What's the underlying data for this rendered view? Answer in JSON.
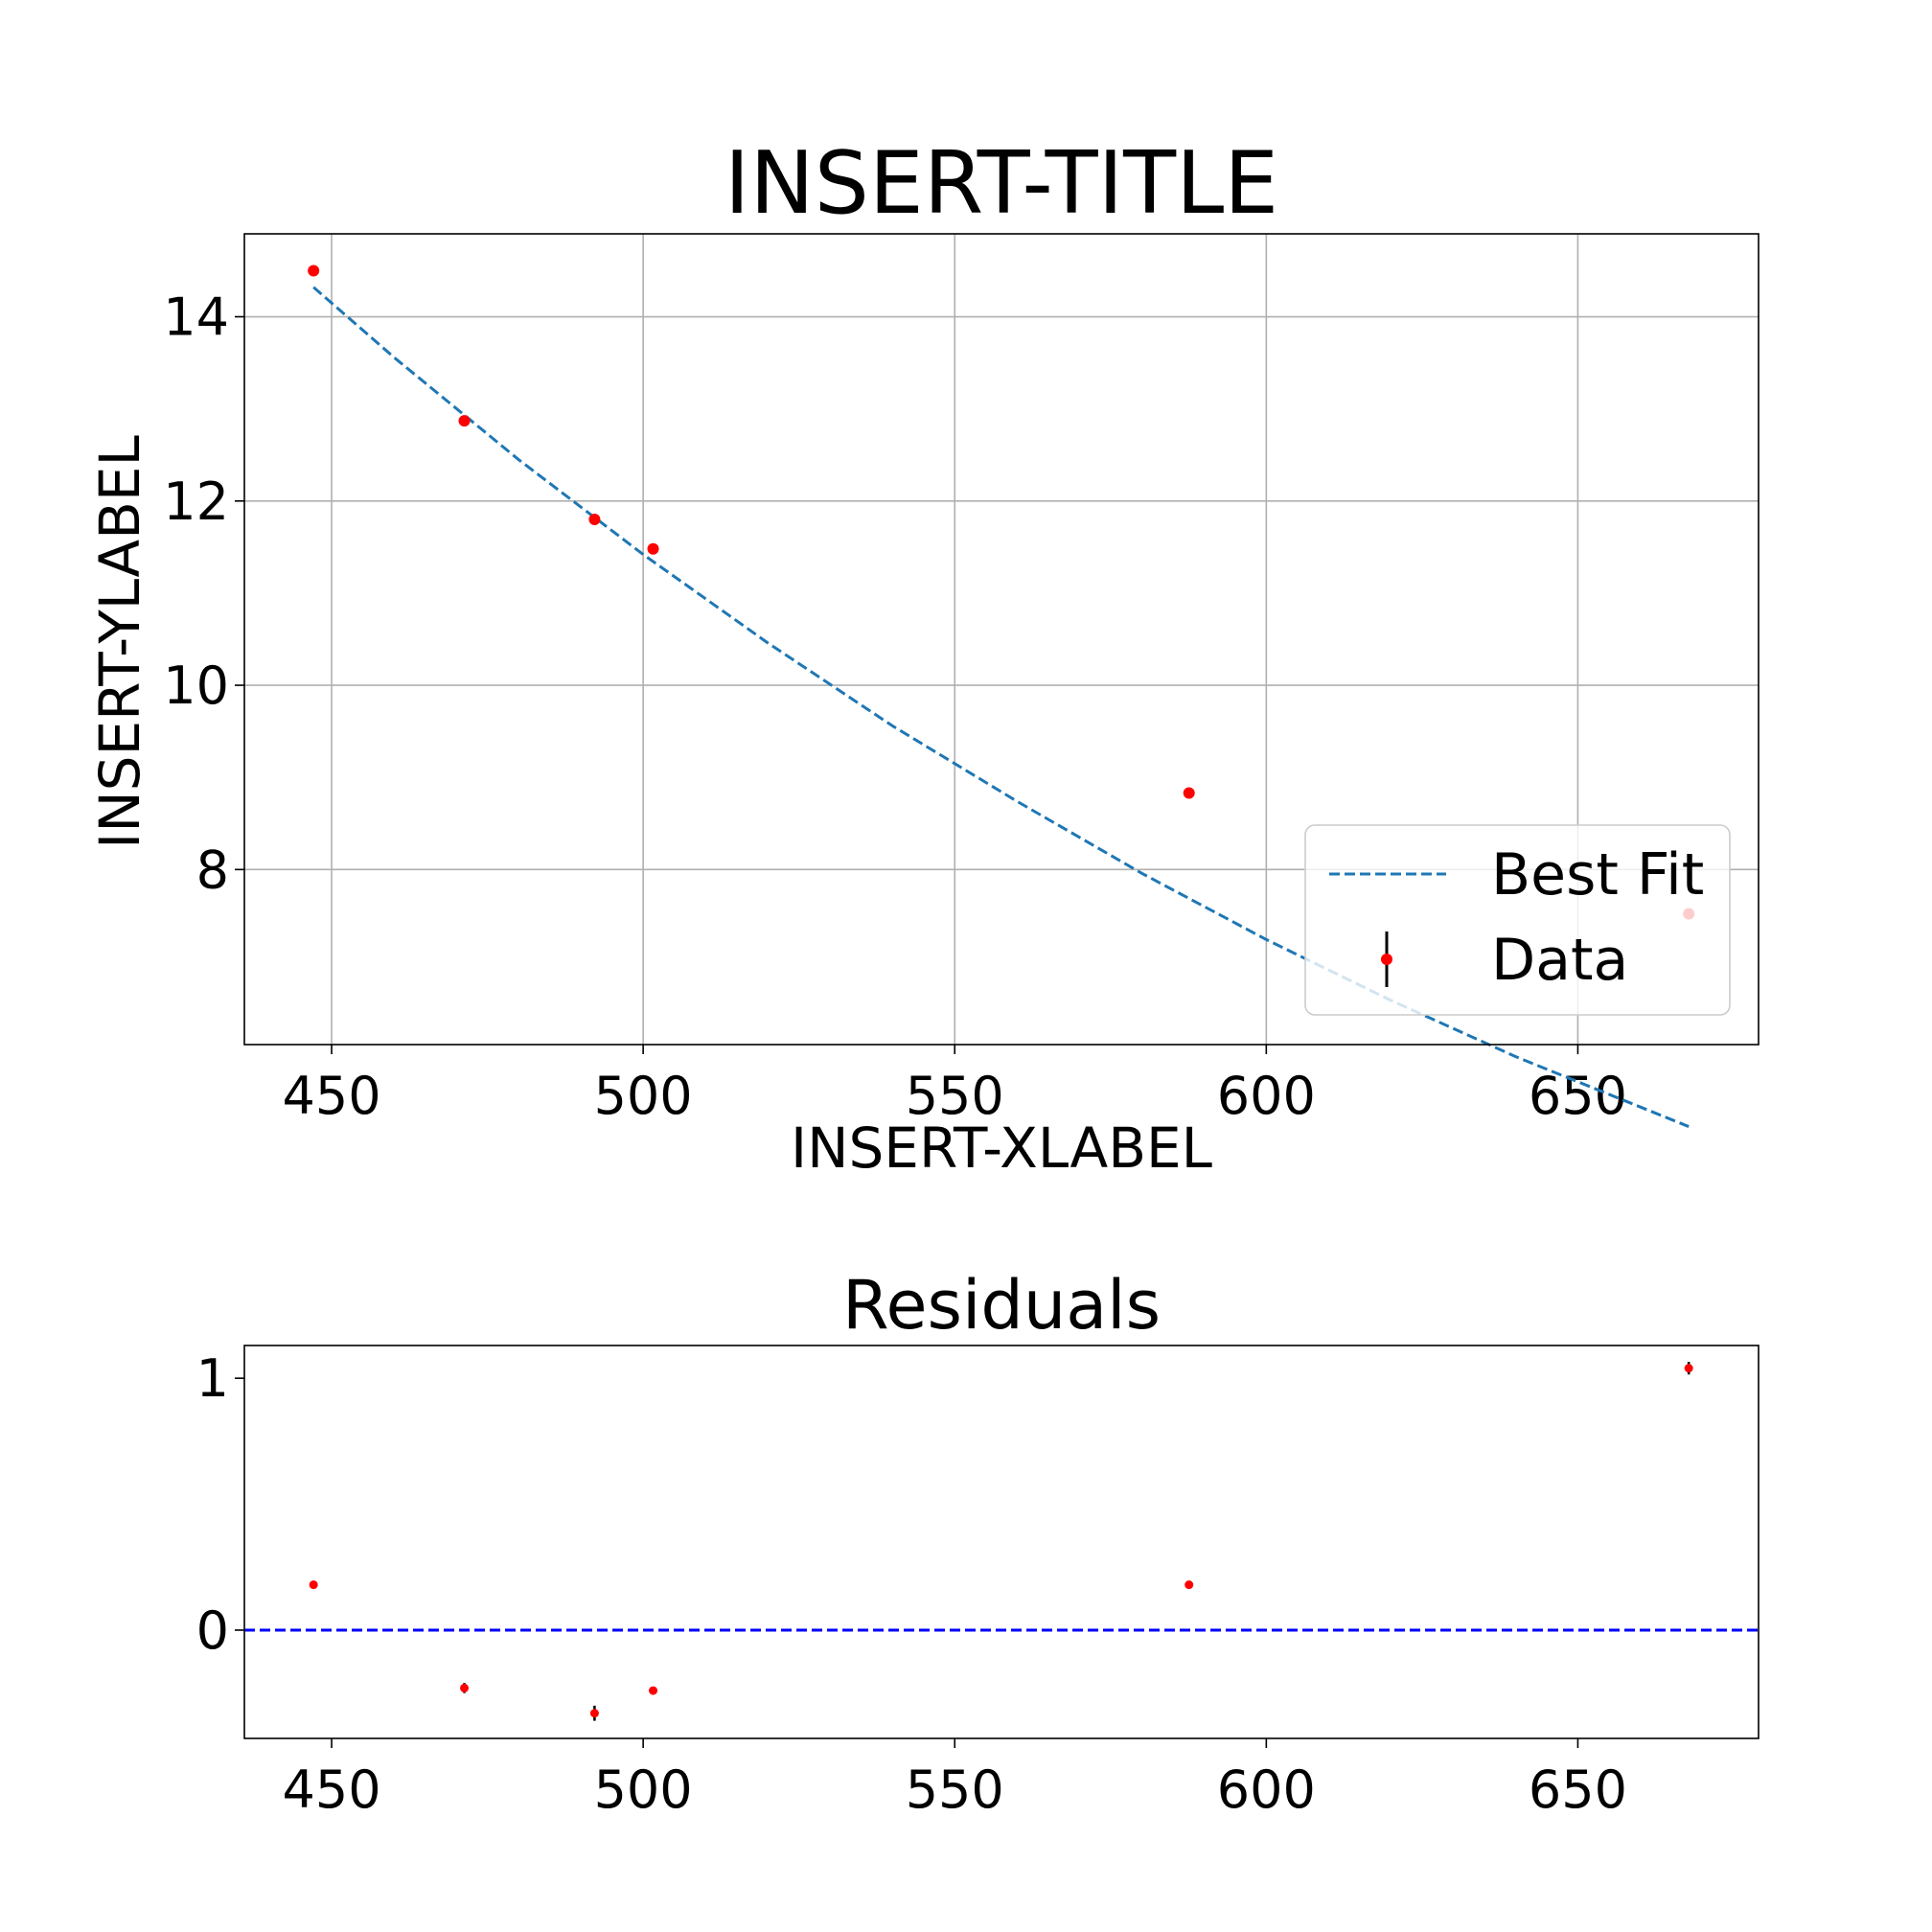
{
  "chart_data": [
    {
      "type": "scatter",
      "title": "INSERT-TITLE",
      "xlabel": "INSERT-XLABEL",
      "ylabel": "INSERT-YLABEL",
      "xlim": [
        436,
        679
      ],
      "ylim": [
        6.1,
        14.9
      ],
      "xticks": [
        450,
        500,
        550,
        600,
        650
      ],
      "yticks": [
        8,
        10,
        12,
        14
      ],
      "grid": true,
      "legend_position": "lower right",
      "series": [
        {
          "name": "Data",
          "kind": "errorbar-points",
          "color": "#ff0000",
          "errorbar_color": "#000000",
          "x": [
            447.1,
            471.3,
            492.2,
            501.6,
            587.6,
            667.8
          ],
          "y": [
            14.5,
            12.87,
            11.8,
            11.48,
            8.83,
            7.52
          ]
        },
        {
          "name": "Best Fit",
          "kind": "line",
          "style": "dashed",
          "color": "#1f77b4",
          "x": [
            447.1,
            460,
            480,
            500,
            520,
            540,
            560,
            580,
            600,
            620,
            640,
            667.8
          ],
          "y": [
            14.32,
            13.56,
            12.45,
            11.42,
            10.46,
            9.56,
            8.74,
            7.96,
            7.24,
            6.58,
            5.97,
            5.21
          ]
        }
      ]
    },
    {
      "type": "scatter",
      "title": "Residuals",
      "xlim": [
        436,
        679
      ],
      "ylim": [
        -0.43,
        1.13
      ],
      "xticks": [
        450,
        500,
        550,
        600,
        650
      ],
      "yticks": [
        0,
        1
      ],
      "grid": false,
      "reference_line": {
        "y": 0,
        "style": "dashed",
        "color": "#0000ff"
      },
      "series": [
        {
          "kind": "errorbar-points",
          "color": "#ff0000",
          "errorbar_color": "#000000",
          "x": [
            447.1,
            471.3,
            492.2,
            501.6,
            587.6,
            667.8
          ],
          "y": [
            0.18,
            -0.23,
            -0.33,
            -0.24,
            0.18,
            1.04
          ],
          "yerr": [
            0.01,
            0.02,
            0.03,
            0.01,
            0.01,
            0.025
          ]
        }
      ]
    }
  ]
}
